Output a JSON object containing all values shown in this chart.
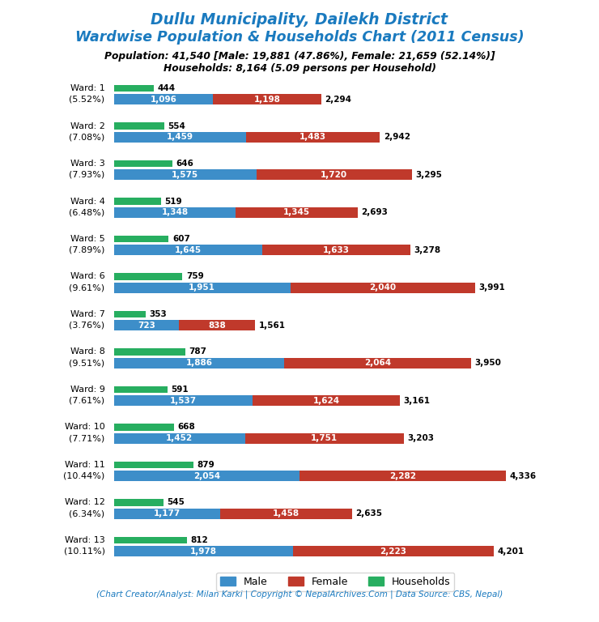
{
  "title_line1": "Dullu Municipality, Dailekh District",
  "title_line2": "Wardwise Population & Households Chart (2011 Census)",
  "subtitle_line1": "Population: 41,540 [Male: 19,881 (47.86%), Female: 21,659 (52.14%)]",
  "subtitle_line2": "Households: 8,164 (5.09 persons per Household)",
  "footer": "(Chart Creator/Analyst: Milan Karki | Copyright © NepalArchives.Com | Data Source: CBS, Nepal)",
  "wards": [
    1,
    2,
    3,
    4,
    5,
    6,
    7,
    8,
    9,
    10,
    11,
    12,
    13
  ],
  "ward_pct": [
    "5.52%",
    "7.08%",
    "7.93%",
    "6.48%",
    "7.89%",
    "9.61%",
    "3.76%",
    "9.51%",
    "7.61%",
    "7.71%",
    "10.44%",
    "6.34%",
    "10.11%"
  ],
  "male": [
    1096,
    1459,
    1575,
    1348,
    1645,
    1951,
    723,
    1886,
    1537,
    1452,
    2054,
    1177,
    1978
  ],
  "female": [
    1198,
    1483,
    1720,
    1345,
    1633,
    2040,
    838,
    2064,
    1624,
    1751,
    2282,
    1458,
    2223
  ],
  "total": [
    2294,
    2942,
    3295,
    2693,
    3278,
    3991,
    1561,
    3950,
    3161,
    3203,
    4336,
    2635,
    4201
  ],
  "households": [
    444,
    554,
    646,
    519,
    607,
    759,
    353,
    787,
    591,
    668,
    879,
    545,
    812
  ],
  "color_male": "#3d8ec9",
  "color_female": "#c0392b",
  "color_households": "#27ae60",
  "color_title": "#1a7abf",
  "background": "#ffffff",
  "figsize": [
    7.4,
    7.68
  ],
  "dpi": 100
}
